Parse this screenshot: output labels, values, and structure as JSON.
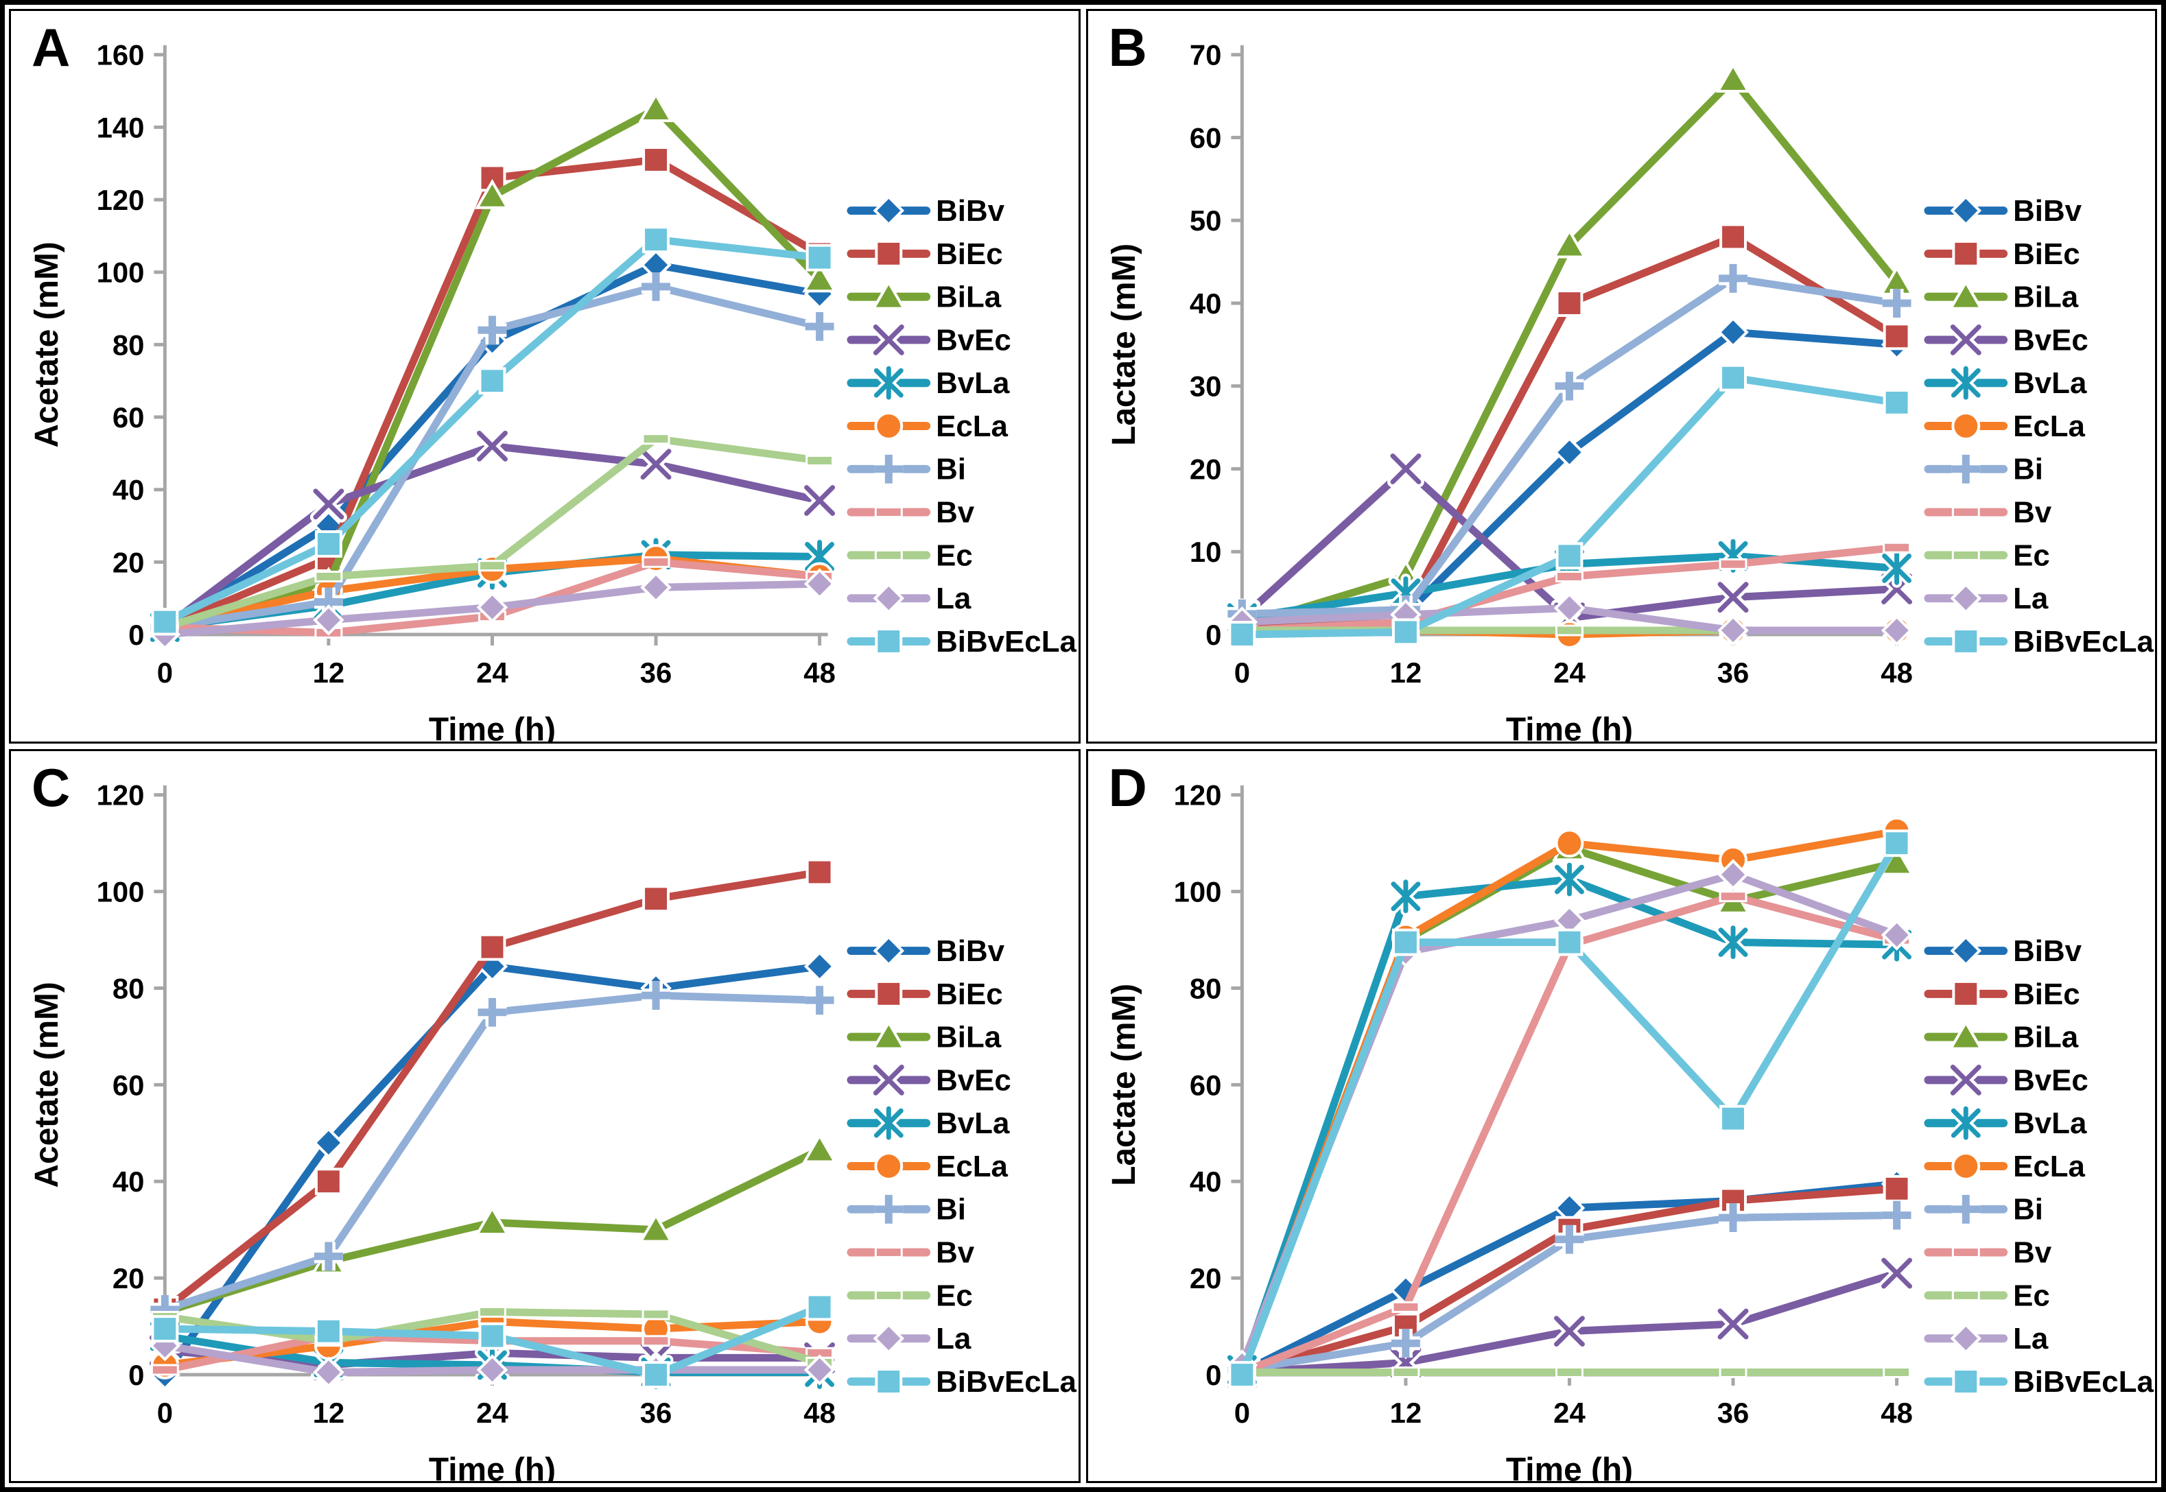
{
  "figure": {
    "description": "Four-panel line chart figure of acetate and lactate production over time by bacterial co-cultures",
    "background_color": "#FFFFFF",
    "border_color": "#000000",
    "axis_color": "#A6A6A6",
    "text_color": "#000000"
  },
  "series_styles": [
    {
      "name": "BiBv",
      "color": "#1F6FB5",
      "marker": "diamond"
    },
    {
      "name": "BiEc",
      "color": "#C04A45",
      "marker": "square"
    },
    {
      "name": "BiLa",
      "color": "#77A336",
      "marker": "triangle"
    },
    {
      "name": "BvEc",
      "color": "#7A5CA3",
      "marker": "x"
    },
    {
      "name": "BvLa",
      "color": "#1E9AB8",
      "marker": "asterisk"
    },
    {
      "name": "EcLa",
      "color": "#F57E27",
      "marker": "circle"
    },
    {
      "name": "Bi",
      "color": "#92AFD7",
      "marker": "plus"
    },
    {
      "name": "Bv",
      "color": "#E59395",
      "marker": "dash"
    },
    {
      "name": "Ec",
      "color": "#AACF8E",
      "marker": "dash"
    },
    {
      "name": "La",
      "color": "#B5A3CD",
      "marker": "diamond"
    },
    {
      "name": "BiBvEcLa",
      "color": "#6CC5DD",
      "marker": "square"
    }
  ],
  "chart_data": [
    {
      "panel": "A",
      "type": "line",
      "title": "",
      "ylabel": "Acetate (mM)",
      "xlabel": "Time (h)",
      "ylim": [
        0,
        160
      ],
      "yticks": [
        0,
        20,
        40,
        60,
        80,
        100,
        120,
        140,
        160
      ],
      "x": [
        0,
        12,
        24,
        36,
        48
      ],
      "grid": false,
      "legend_position": "right",
      "values": {
        "BiBv": [
          2,
          30,
          81,
          102,
          94
        ],
        "BiEc": [
          2,
          21,
          126,
          131,
          105
        ],
        "BiLa": [
          2,
          14,
          121,
          145,
          98
        ],
        "BvEc": [
          2,
          36,
          52,
          47,
          37
        ],
        "BvLa": [
          2,
          8,
          17,
          22,
          21.5
        ],
        "EcLa": [
          2,
          12,
          18,
          21,
          16
        ],
        "Bi": [
          2,
          9,
          84,
          96,
          85
        ],
        "Bv": [
          2,
          0.5,
          5,
          20,
          16
        ],
        "Ec": [
          2,
          16,
          19,
          54,
          48
        ],
        "La": [
          0,
          4,
          7.5,
          13,
          14
        ],
        "BiBvEcLa": [
          3.5,
          25,
          70,
          109,
          104
        ]
      }
    },
    {
      "panel": "B",
      "type": "line",
      "title": "",
      "ylabel": "Lactate (mM)",
      "xlabel": "Time (h)",
      "ylim": [
        0,
        70
      ],
      "yticks": [
        0,
        10,
        20,
        30,
        40,
        50,
        60,
        70
      ],
      "x": [
        0,
        12,
        24,
        36,
        48
      ],
      "grid": false,
      "legend_position": "right",
      "values": {
        "BiBv": [
          1,
          2.5,
          22,
          36.5,
          35
        ],
        "BiEc": [
          1,
          2.5,
          40,
          48,
          36
        ],
        "BiLa": [
          1,
          7,
          47,
          67,
          42.5
        ],
        "BvEc": [
          2,
          20,
          2,
          4.5,
          5.5
        ],
        "BvLa": [
          2,
          5,
          8.5,
          9.5,
          8
        ],
        "EcLa": [
          0.5,
          0.5,
          0,
          0.5,
          0.5
        ],
        "Bi": [
          2.5,
          3,
          30,
          43,
          40
        ],
        "Bv": [
          0.5,
          1.5,
          7,
          8.5,
          10.5
        ],
        "Ec": [
          0.5,
          0.5,
          0.5,
          0.5,
          0.5
        ],
        "La": [
          1.5,
          2.4,
          3.2,
          0.5,
          0.5
        ],
        "BiBvEcLa": [
          0,
          0.3,
          9.5,
          31,
          28
        ]
      }
    },
    {
      "panel": "C",
      "type": "line",
      "title": "",
      "ylabel": "Acetate (mM)",
      "xlabel": "Time (h)",
      "ylim": [
        0,
        120
      ],
      "yticks": [
        0,
        20,
        40,
        60,
        80,
        100,
        120
      ],
      "x": [
        0,
        12,
        24,
        36,
        48
      ],
      "grid": false,
      "legend_position": "right",
      "values": {
        "BiBv": [
          0,
          48,
          84.5,
          80,
          84.5
        ],
        "BiEc": [
          13.5,
          40,
          88.5,
          98.5,
          104
        ],
        "BiLa": [
          13,
          23.5,
          31.5,
          30,
          46.5
        ],
        "BvEc": [
          5,
          2,
          4.5,
          3.5,
          3.5
        ],
        "BvLa": [
          8,
          2.5,
          2,
          0.5,
          0.5
        ],
        "EcLa": [
          2,
          6,
          11,
          9.5,
          11
        ],
        "Bi": [
          13.5,
          24.5,
          75,
          78.5,
          77.5
        ],
        "Bv": [
          1,
          8,
          7,
          7,
          4.5
        ],
        "Ec": [
          12,
          7,
          13,
          12.5,
          2.5
        ],
        "La": [
          6,
          0.5,
          1,
          1,
          1
        ],
        "BiBvEcLa": [
          9.5,
          9,
          8,
          0,
          14
        ]
      }
    },
    {
      "panel": "D",
      "type": "line",
      "title": "",
      "ylabel": "Lactate (mM)",
      "xlabel": "Time (h)",
      "ylim": [
        0,
        120
      ],
      "yticks": [
        0,
        20,
        40,
        60,
        80,
        100,
        120
      ],
      "x": [
        0,
        12,
        24,
        36,
        48
      ],
      "grid": false,
      "legend_position": "right",
      "values": {
        "BiBv": [
          0.5,
          17.5,
          34.5,
          36,
          39.5
        ],
        "BiEc": [
          0.5,
          10,
          30,
          36,
          38.5
        ],
        "BiLa": [
          1,
          90,
          109,
          98,
          106
        ],
        "BvEc": [
          0.5,
          2.5,
          9,
          10.5,
          21
        ],
        "BvLa": [
          1,
          99,
          102.5,
          89.5,
          89
        ],
        "EcLa": [
          1,
          90.5,
          110,
          106.5,
          112.5
        ],
        "Bi": [
          1,
          6.5,
          28,
          32.5,
          33
        ],
        "Bv": [
          0.5,
          14,
          89,
          99,
          90
        ],
        "Ec": [
          0.5,
          0.5,
          0.5,
          0.5,
          0.5
        ],
        "La": [
          2,
          87.5,
          94,
          103.5,
          91
        ],
        "BiBvEcLa": [
          0,
          89.5,
          89.5,
          53,
          110
        ]
      }
    }
  ],
  "legend": {
    "entries": [
      "BiBv",
      "BiEc",
      "BiLa",
      "BvEc",
      "BvLa",
      "EcLa",
      "Bi",
      "Bv",
      "Ec",
      "La",
      "BiBvEcLa"
    ]
  }
}
